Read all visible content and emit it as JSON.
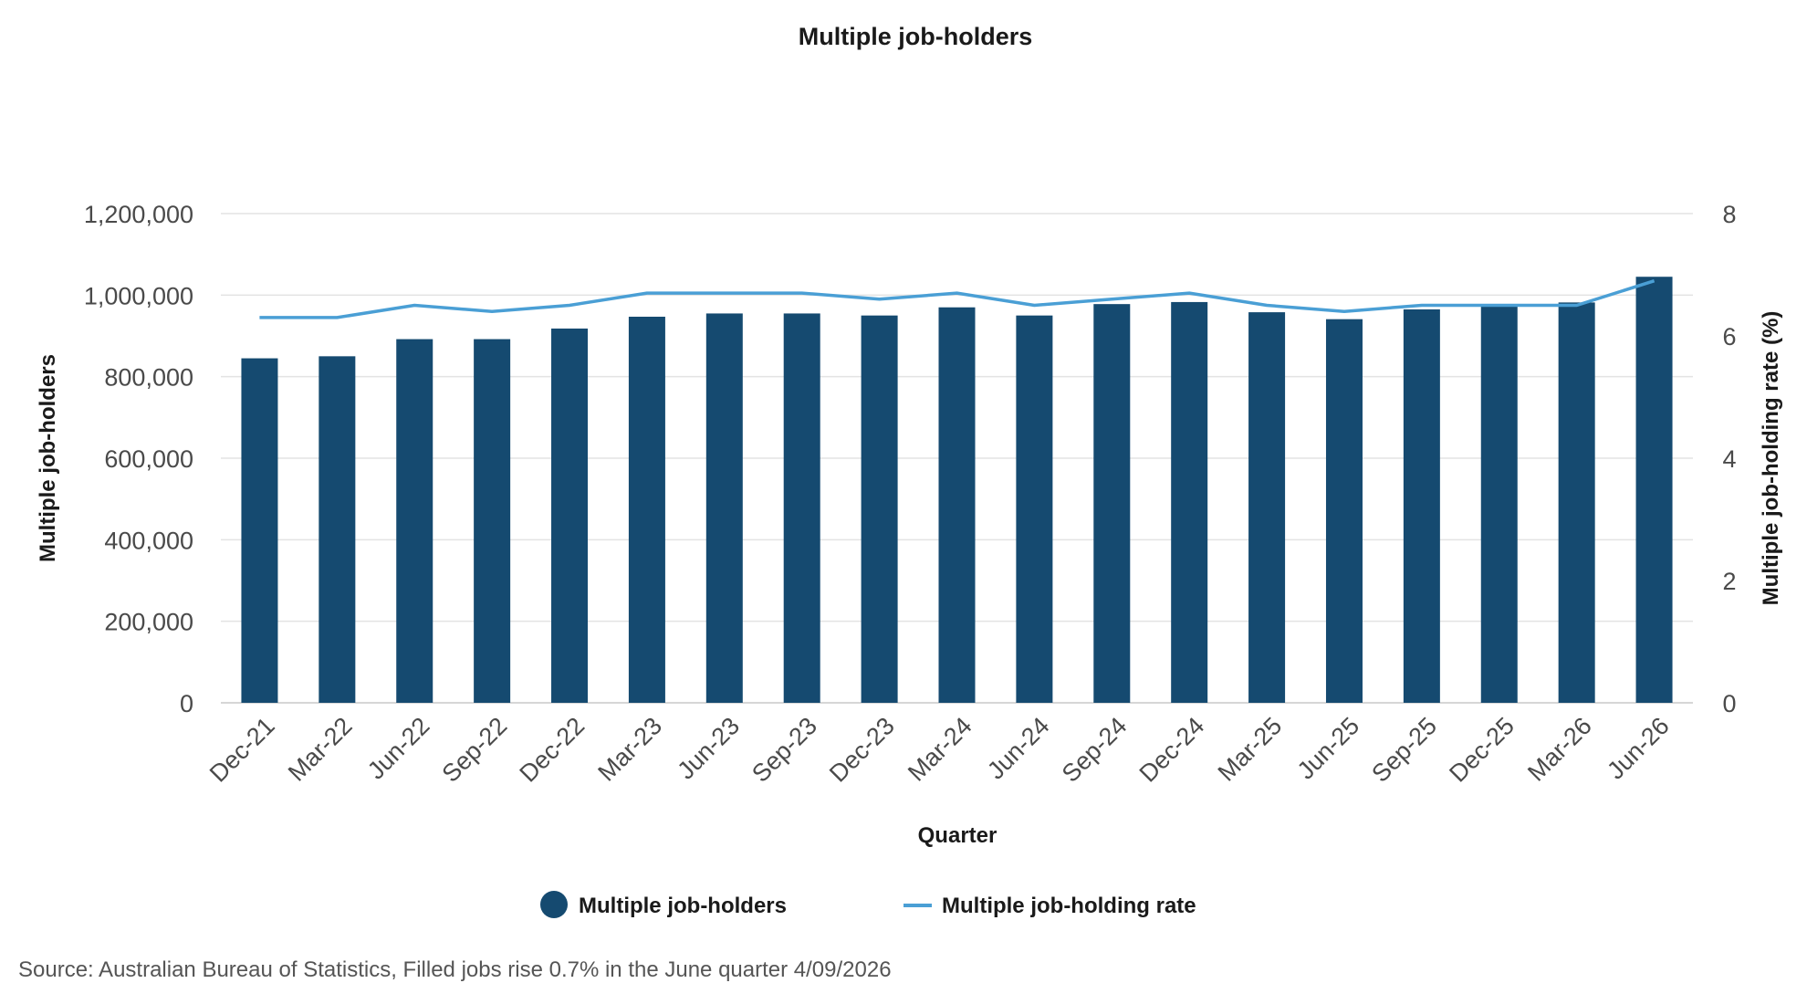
{
  "chart_data": {
    "type": "bar",
    "title": "Multiple job-holders",
    "xlabel": "Quarter",
    "ylabel": "Multiple job-holders",
    "y2label": "Multiple job-holding rate (%)",
    "categories": [
      "Dec-21",
      "Mar-22",
      "Jun-22",
      "Sep-22",
      "Dec-22",
      "Mar-23",
      "Jun-23",
      "Sep-23",
      "Dec-23",
      "Mar-24",
      "Jun-24",
      "Sep-24",
      "Dec-24",
      "Mar-25",
      "Jun-25",
      "Sep-25",
      "Dec-25",
      "Mar-26",
      "Jun-26"
    ],
    "ylim": [
      0,
      1200000
    ],
    "yticks": [
      0,
      200000,
      400000,
      600000,
      800000,
      1000000,
      1200000
    ],
    "ytick_labels": [
      "0",
      "200,000",
      "400,000",
      "600,000",
      "800,000",
      "1,000,000",
      "1,200,000"
    ],
    "y2lim": [
      0,
      8
    ],
    "y2ticks": [
      0,
      2,
      4,
      6,
      8
    ],
    "y2tick_labels": [
      "0",
      "2",
      "4",
      "6",
      "8"
    ],
    "grid": true,
    "legend_position": "bottom",
    "series": [
      {
        "name": "Multiple job-holders",
        "type": "bar",
        "axis": "left",
        "color": "#154a70",
        "values": [
          845000,
          850000,
          892000,
          892000,
          918000,
          947000,
          955000,
          955000,
          950000,
          970000,
          950000,
          978000,
          983000,
          958000,
          941000,
          965000,
          975000,
          982000,
          1045000
        ]
      },
      {
        "name": "Multiple job-holding rate",
        "type": "line",
        "axis": "right",
        "color": "#4a9fd5",
        "values": [
          6.3,
          6.3,
          6.5,
          6.4,
          6.5,
          6.7,
          6.7,
          6.7,
          6.6,
          6.7,
          6.5,
          6.6,
          6.7,
          6.5,
          6.4,
          6.5,
          6.5,
          6.5,
          6.9
        ]
      }
    ]
  },
  "source": "Source: Australian Bureau of Statistics, Filled jobs rise 0.7% in the June quarter 4/09/2026"
}
